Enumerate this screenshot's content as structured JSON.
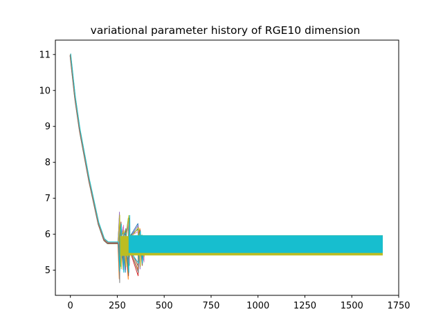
{
  "chart_data": {
    "type": "line",
    "title": "variational parameter history of RGE10 dimension",
    "xlabel": "",
    "ylabel": "",
    "xlim": [
      -80,
      1750
    ],
    "ylim": [
      4.3,
      11.4
    ],
    "xticks": [
      0,
      250,
      500,
      750,
      1000,
      1250,
      1500,
      1750
    ],
    "yticks": [
      5,
      6,
      7,
      8,
      9,
      10,
      11
    ],
    "grid": false,
    "legend": "none",
    "colors": [
      "#1f77b4",
      "#ff7f0e",
      "#2ca02c",
      "#d62728",
      "#9467bd",
      "#8c564b",
      "#e377c2",
      "#7f7f7f",
      "#bcbd22",
      "#17becf"
    ],
    "series_count": 10,
    "iterations": 1665,
    "descent": [
      {
        "x": 0,
        "y": 11.0
      },
      {
        "x": 25,
        "y": 9.8
      },
      {
        "x": 50,
        "y": 8.9
      },
      {
        "x": 100,
        "y": 7.5
      },
      {
        "x": 150,
        "y": 6.3
      },
      {
        "x": 180,
        "y": 5.85
      },
      {
        "x": 200,
        "y": 5.76
      },
      {
        "x": 255,
        "y": 5.76
      }
    ],
    "oscillation_band": {
      "x_start": 310,
      "x_end": 1665,
      "y_low": 5.41,
      "y_high": 5.97
    },
    "transient_spikes": [
      {
        "x": 262,
        "y_low": 4.6,
        "y_high": 6.7
      },
      {
        "x": 270,
        "y_low": 5.0,
        "y_high": 6.4
      },
      {
        "x": 283,
        "y_low": 4.9,
        "y_high": 6.3
      },
      {
        "x": 295,
        "y_low": 4.9,
        "y_high": 6.2
      },
      {
        "x": 310,
        "y_low": 4.7,
        "y_high": 6.6
      },
      {
        "x": 315,
        "y_low": 5.1,
        "y_high": 6.6
      },
      {
        "x": 362,
        "y_low": 4.8,
        "y_high": 6.35
      },
      {
        "x": 372,
        "y_low": 5.0,
        "y_high": 6.2
      },
      {
        "x": 383,
        "y_low": 5.1,
        "y_high": 6.0
      },
      {
        "x": 392,
        "y_low": 5.2,
        "y_high": 5.98
      }
    ]
  }
}
